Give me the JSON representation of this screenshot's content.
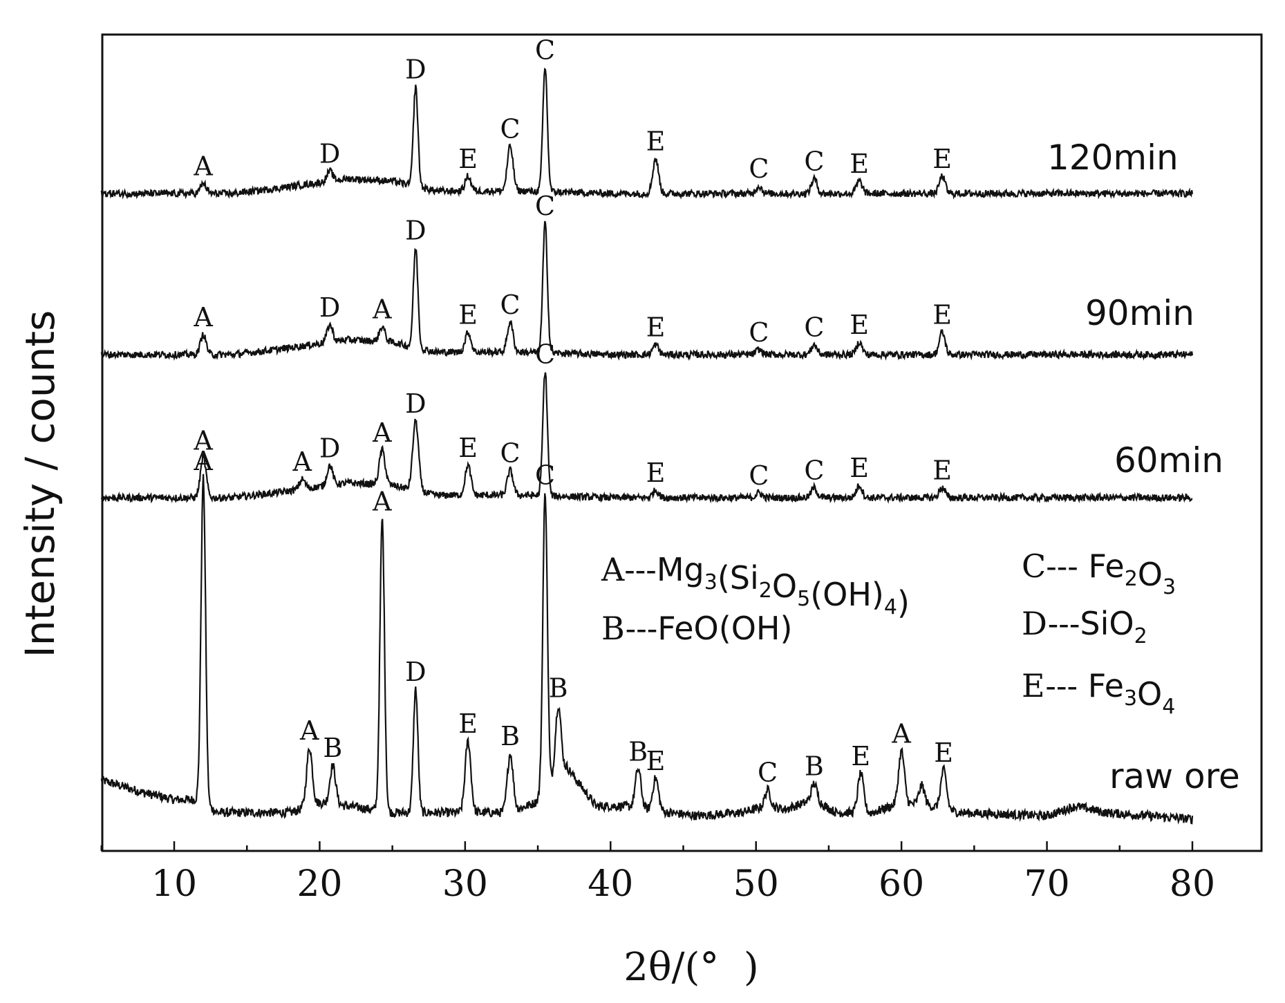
{
  "chart_data": {
    "type": "line",
    "title": "",
    "xlabel": "2θ/(°  )",
    "ylabel": "Intensity / counts",
    "xlim": [
      5,
      80
    ],
    "xticks": [
      10,
      20,
      30,
      40,
      50,
      60,
      70,
      80
    ],
    "xtick_labels": [
      "10",
      "20",
      "30",
      "40",
      "50",
      "60",
      "70",
      "80"
    ],
    "yticks": "none",
    "grid": false,
    "series": [
      {
        "name": "raw ore",
        "baseline_profile": [
          [
            5,
            0.12
          ],
          [
            8,
            0.08
          ],
          [
            10,
            0.06
          ],
          [
            11.6,
            0.06
          ],
          [
            13,
            0.02
          ],
          [
            18,
            0.02
          ],
          [
            20,
            0.05
          ],
          [
            22,
            0.04
          ],
          [
            25,
            0.02
          ],
          [
            28,
            0.02
          ],
          [
            33,
            0.02
          ],
          [
            34.8,
            0.05
          ],
          [
            37,
            0.16
          ],
          [
            39,
            0.04
          ],
          [
            41,
            0.04
          ],
          [
            44,
            0.02
          ],
          [
            46,
            0.01
          ],
          [
            49,
            0.02
          ],
          [
            50.8,
            0.04
          ],
          [
            52,
            0.03
          ],
          [
            54,
            0.06
          ],
          [
            55.5,
            0.02
          ],
          [
            58,
            0.02
          ],
          [
            60,
            0.05
          ],
          [
            62,
            0.04
          ],
          [
            64,
            0.02
          ],
          [
            70,
            0.01
          ],
          [
            72,
            0.04
          ],
          [
            74,
            0.02
          ],
          [
            80,
            0.0
          ]
        ],
        "peaks": [
          {
            "x": 12.0,
            "intensity": 1.0,
            "label": "A"
          },
          {
            "x": 19.3,
            "intensity": 0.18,
            "label": "A"
          },
          {
            "x": 20.9,
            "intensity": 0.12,
            "label": "B"
          },
          {
            "x": 24.3,
            "intensity": 0.9,
            "label": "A"
          },
          {
            "x": 26.6,
            "intensity": 0.38,
            "label": "D"
          },
          {
            "x": 30.2,
            "intensity": 0.22,
            "label": "E"
          },
          {
            "x": 33.1,
            "intensity": 0.18,
            "label": "B"
          },
          {
            "x": 35.5,
            "intensity": 0.92,
            "label": "C"
          },
          {
            "x": 36.4,
            "intensity": 0.22,
            "label": "B"
          },
          {
            "x": 41.9,
            "intensity": 0.12,
            "label": "B"
          },
          {
            "x": 43.1,
            "intensity": 0.1,
            "label": "E"
          },
          {
            "x": 50.8,
            "intensity": 0.05,
            "label": "C"
          },
          {
            "x": 54.0,
            "intensity": 0.05,
            "label": "B"
          },
          {
            "x": 57.2,
            "intensity": 0.12,
            "label": "E"
          },
          {
            "x": 60.0,
            "intensity": 0.16,
            "label": "A"
          },
          {
            "x": 61.4,
            "intensity": 0.06,
            "label": ""
          },
          {
            "x": 62.9,
            "intensity": 0.12,
            "label": "E"
          }
        ]
      },
      {
        "name": "60min",
        "baseline_profile": [
          [
            5,
            0.0
          ],
          [
            14,
            0.0
          ],
          [
            17,
            0.02
          ],
          [
            22,
            0.06
          ],
          [
            25,
            0.05
          ],
          [
            28,
            0.01
          ],
          [
            34,
            0.01
          ],
          [
            40,
            0.0
          ],
          [
            80,
            0.0
          ]
        ],
        "peaks": [
          {
            "x": 12.0,
            "intensity": 0.16,
            "label": "A"
          },
          {
            "x": 18.8,
            "intensity": 0.04,
            "label": "A"
          },
          {
            "x": 20.7,
            "intensity": 0.08,
            "label": "D"
          },
          {
            "x": 24.3,
            "intensity": 0.14,
            "label": "A"
          },
          {
            "x": 26.6,
            "intensity": 0.28,
            "label": "D"
          },
          {
            "x": 30.2,
            "intensity": 0.12,
            "label": "E"
          },
          {
            "x": 33.1,
            "intensity": 0.1,
            "label": "C"
          },
          {
            "x": 35.5,
            "intensity": 0.5,
            "label": "C"
          },
          {
            "x": 43.1,
            "intensity": 0.03,
            "label": "E"
          },
          {
            "x": 50.2,
            "intensity": 0.02,
            "label": "C"
          },
          {
            "x": 54.0,
            "intensity": 0.04,
            "label": "C"
          },
          {
            "x": 57.1,
            "intensity": 0.05,
            "label": "E"
          },
          {
            "x": 62.8,
            "intensity": 0.04,
            "label": "E"
          }
        ]
      },
      {
        "name": "90min",
        "baseline_profile": [
          [
            5,
            0.0
          ],
          [
            14,
            0.0
          ],
          [
            17,
            0.02
          ],
          [
            22,
            0.06
          ],
          [
            25,
            0.05
          ],
          [
            28,
            0.01
          ],
          [
            34,
            0.01
          ],
          [
            40,
            0.0
          ],
          [
            80,
            0.0
          ]
        ],
        "peaks": [
          {
            "x": 12.0,
            "intensity": 0.08,
            "label": "A"
          },
          {
            "x": 20.7,
            "intensity": 0.07,
            "label": "D"
          },
          {
            "x": 24.3,
            "intensity": 0.06,
            "label": "A"
          },
          {
            "x": 26.6,
            "intensity": 0.4,
            "label": "D"
          },
          {
            "x": 30.2,
            "intensity": 0.08,
            "label": "E"
          },
          {
            "x": 33.1,
            "intensity": 0.12,
            "label": "C"
          },
          {
            "x": 35.5,
            "intensity": 0.52,
            "label": "C"
          },
          {
            "x": 43.1,
            "intensity": 0.04,
            "label": "E"
          },
          {
            "x": 50.2,
            "intensity": 0.02,
            "label": "C"
          },
          {
            "x": 54.0,
            "intensity": 0.04,
            "label": "C"
          },
          {
            "x": 57.1,
            "intensity": 0.05,
            "label": "E"
          },
          {
            "x": 62.8,
            "intensity": 0.09,
            "label": "E"
          }
        ]
      },
      {
        "name": "120min",
        "baseline_profile": [
          [
            5,
            0.0
          ],
          [
            14,
            0.0
          ],
          [
            17,
            0.02
          ],
          [
            22,
            0.06
          ],
          [
            25,
            0.05
          ],
          [
            28,
            0.01
          ],
          [
            34,
            0.01
          ],
          [
            40,
            0.0
          ],
          [
            80,
            0.0
          ]
        ],
        "peaks": [
          {
            "x": 12.0,
            "intensity": 0.04,
            "label": "A"
          },
          {
            "x": 20.7,
            "intensity": 0.04,
            "label": "D"
          },
          {
            "x": 26.6,
            "intensity": 0.4,
            "label": "D"
          },
          {
            "x": 30.2,
            "intensity": 0.06,
            "label": "E"
          },
          {
            "x": 33.1,
            "intensity": 0.18,
            "label": "C"
          },
          {
            "x": 35.5,
            "intensity": 0.5,
            "label": "C"
          },
          {
            "x": 43.1,
            "intensity": 0.14,
            "label": "E"
          },
          {
            "x": 50.2,
            "intensity": 0.03,
            "label": "C"
          },
          {
            "x": 54.0,
            "intensity": 0.06,
            "label": "C"
          },
          {
            "x": 57.1,
            "intensity": 0.05,
            "label": "E"
          },
          {
            "x": 62.8,
            "intensity": 0.07,
            "label": "E"
          }
        ]
      }
    ],
    "legend": [
      {
        "prefix": "A---",
        "parts": [
          [
            "Mg",
            ""
          ],
          [
            "3",
            "sub"
          ],
          [
            "(Si",
            ""
          ],
          [
            "2",
            "sub"
          ],
          [
            "O",
            ""
          ],
          [
            "5",
            "sub"
          ],
          [
            "(OH)",
            ""
          ],
          [
            "4",
            "sub"
          ],
          [
            ")",
            ""
          ]
        ]
      },
      {
        "prefix": "B---",
        "parts": [
          [
            "FeO(OH)",
            ""
          ]
        ]
      },
      {
        "prefix": "C--- ",
        "parts": [
          [
            "Fe",
            ""
          ],
          [
            "2",
            "sub"
          ],
          [
            "O",
            ""
          ],
          [
            "3",
            "sub"
          ]
        ]
      },
      {
        "prefix": "D---",
        "parts": [
          [
            "SiO",
            ""
          ],
          [
            "2",
            "sub"
          ]
        ]
      },
      {
        "prefix": "E--- ",
        "parts": [
          [
            "Fe",
            ""
          ],
          [
            "3",
            "sub"
          ],
          [
            "O",
            ""
          ],
          [
            "4",
            "sub"
          ]
        ]
      }
    ]
  }
}
